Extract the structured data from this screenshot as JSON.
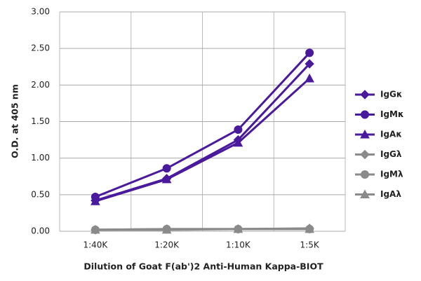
{
  "chart_data": {
    "type": "line",
    "x_label": "Dilution of Goat F(ab')2 Anti-Human Kappa-BIOT",
    "y_label": "O.D. at 405 nm",
    "categories": [
      "1:40K",
      "1:20K",
      "1:10K",
      "1:5K"
    ],
    "ylim": [
      0,
      3
    ],
    "yticks": [
      {
        "value": 0,
        "label": "0.00"
      },
      {
        "value": 0.5,
        "label": "0.50"
      },
      {
        "value": 1,
        "label": "1.00"
      },
      {
        "value": 1.5,
        "label": "1.50"
      },
      {
        "value": 2,
        "label": "2.00"
      },
      {
        "value": 2.5,
        "label": "2.50"
      },
      {
        "value": 3,
        "label": "3.00"
      }
    ],
    "grid": true,
    "legend": "right",
    "series": [
      {
        "name": "IgGκ",
        "color": "#4a1a9c",
        "marker": "diamond",
        "values": [
          0.42,
          0.72,
          1.25,
          2.29
        ]
      },
      {
        "name": "IgMκ",
        "color": "#4a1a9c",
        "marker": "circle",
        "values": [
          0.47,
          0.86,
          1.39,
          2.44
        ]
      },
      {
        "name": "IgAκ",
        "color": "#4a1a9c",
        "marker": "triangle",
        "values": [
          0.41,
          0.71,
          1.21,
          2.09
        ]
      },
      {
        "name": "IgGλ",
        "color": "#8a8a8a",
        "marker": "diamond",
        "values": [
          0.02,
          0.03,
          0.03,
          0.04
        ]
      },
      {
        "name": "IgMλ",
        "color": "#8a8a8a",
        "marker": "circle",
        "values": [
          0.02,
          0.03,
          0.03,
          0.03
        ]
      },
      {
        "name": "IgAλ",
        "color": "#8a8a8a",
        "marker": "triangle",
        "values": [
          0.02,
          0.02,
          0.03,
          0.03
        ]
      }
    ]
  }
}
